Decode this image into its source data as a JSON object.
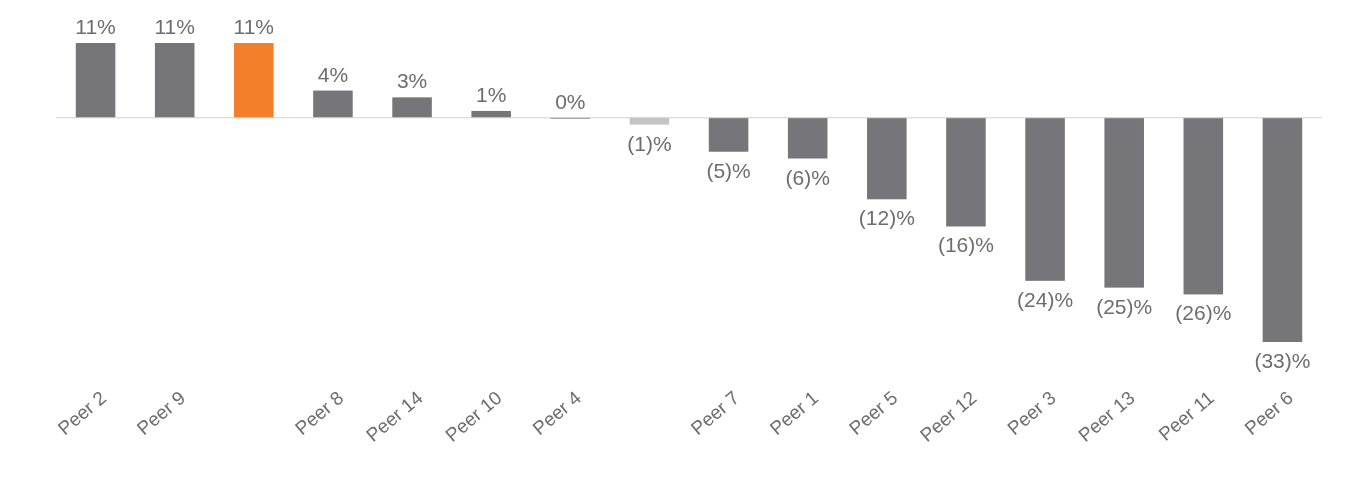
{
  "chart_data": {
    "type": "bar",
    "categories": [
      "Peer 2",
      "Peer 9",
      null,
      "Peer 8",
      "Peer 14",
      "Peer 10",
      "Peer 4",
      null,
      "Peer 7",
      "Peer 1",
      "Peer 5",
      "Peer 12",
      "Peer 3",
      "Peer 13",
      "Peer 11",
      "Peer 6"
    ],
    "values": [
      11,
      11,
      11,
      4,
      3,
      1,
      0,
      -1,
      -5,
      -6,
      -12,
      -16,
      -24,
      -25,
      -26,
      -33
    ],
    "colors": [
      "#76767a",
      "#76767a",
      "#f47f2a",
      "#76767a",
      "#76767a",
      "#76767a",
      "#76767a",
      "#c4c4c6",
      "#76767a",
      "#76767a",
      "#76767a",
      "#76767a",
      "#76767a",
      "#76767a",
      "#76767a",
      "#76767a"
    ],
    "value_labels": [
      "11%",
      "11%",
      "11%",
      "4%",
      "3%",
      "1%",
      "0%",
      "(1)%",
      "(5)%",
      "(6)%",
      "(12)%",
      "(16)%",
      "(24)%",
      "(25)%",
      "(26)%",
      "(33)%"
    ]
  }
}
